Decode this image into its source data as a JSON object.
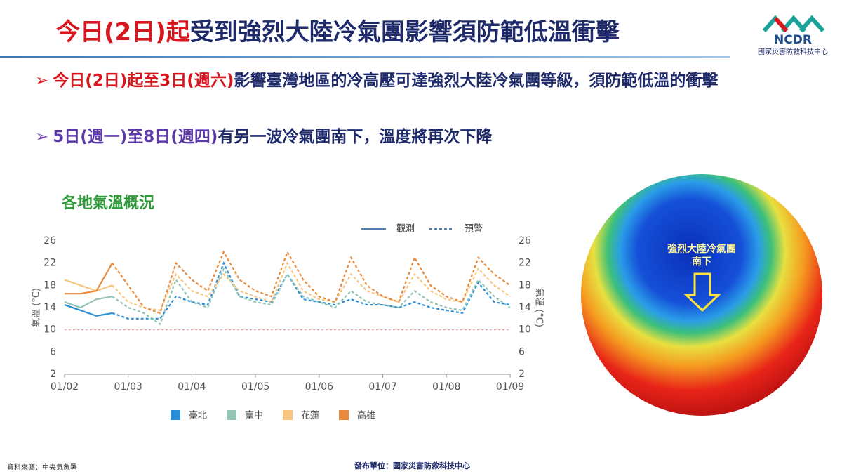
{
  "header": {
    "title_highlight": "今日(2日)起",
    "title_rest": "受到強烈大陸冷氣團影響須防範低溫衝擊",
    "logo": "NCDR",
    "organization": "國家災害防救科技中心"
  },
  "bullets": [
    {
      "highlight": "今日(2日)起至3日(週六)",
      "text": "影響臺灣地區的冷高壓可達強烈大陸冷氣團等級，須防範低溫的衝擊"
    },
    {
      "highlight": "5日(週一)至8日(週四)",
      "text": "有另一波冷氣團南下，溫度將再次下降"
    }
  ],
  "chart_data": {
    "type": "line",
    "title": "各地氣溫概況",
    "ylabel": "氣溫 (°C)",
    "y2label": "氣溫 (°C)",
    "x": [
      0,
      0.25,
      0.5,
      0.75,
      1,
      1.25,
      1.5,
      1.75,
      2,
      2.25,
      2.5,
      2.75,
      3,
      3.25,
      3.5,
      3.75,
      4,
      4.25,
      4.5,
      4.75,
      5,
      5.25,
      5.5,
      5.75,
      6,
      6.25,
      6.5,
      6.75,
      7
    ],
    "xlim": [
      0,
      7
    ],
    "xticks": [
      {
        "value": 0,
        "label": "01/02"
      },
      {
        "value": 1,
        "label": "01/03"
      },
      {
        "value": 2,
        "label": "01/04"
      },
      {
        "value": 3,
        "label": "01/05"
      },
      {
        "value": 4,
        "label": "01/06"
      },
      {
        "value": 5,
        "label": "01/07"
      },
      {
        "value": 6,
        "label": "01/08"
      },
      {
        "value": 7,
        "label": "01/09"
      }
    ],
    "ylim": [
      2,
      26
    ],
    "yticks": [
      2,
      6,
      10,
      14,
      18,
      22,
      26
    ],
    "y2lim": [
      2,
      26
    ],
    "y2ticks": [
      2,
      6,
      10,
      14,
      18,
      22,
      26
    ],
    "reference_line": {
      "value": 10,
      "color": "#f08a8a"
    },
    "line_styles": [
      {
        "name": "觀測",
        "dash": false
      },
      {
        "name": "預警",
        "dash": true
      }
    ],
    "series": [
      {
        "name": "臺北",
        "color": "#2a8fd8",
        "observed": [
          14.5,
          13.5,
          12.5,
          13,
          null,
          null,
          null,
          null,
          null,
          null,
          null,
          null,
          null,
          null,
          null,
          null,
          null,
          null,
          null,
          null,
          null,
          null,
          null,
          null,
          null,
          null,
          null,
          null,
          null
        ],
        "forecast": [
          null,
          null,
          null,
          13,
          12,
          12,
          12,
          16,
          15,
          14.5,
          22,
          16,
          15.5,
          15,
          20,
          15.5,
          15,
          14.5,
          15.5,
          14.5,
          14.5,
          14,
          15,
          14,
          13.5,
          13,
          18.5,
          15,
          14.5
        ]
      },
      {
        "name": "臺中",
        "color": "#93c4b6",
        "observed": [
          15,
          14,
          15.5,
          16,
          null,
          null,
          null,
          null,
          null,
          null,
          null,
          null,
          null,
          null,
          null,
          null,
          null,
          null,
          null,
          null,
          null,
          null,
          null,
          null,
          null,
          null,
          null,
          null,
          null
        ],
        "forecast": [
          null,
          null,
          null,
          16,
          14,
          13,
          11,
          19,
          15,
          14,
          21,
          16,
          15,
          14.5,
          20,
          16,
          15,
          14,
          17,
          15,
          14.5,
          14,
          17,
          15,
          14,
          13.5,
          19,
          16,
          14
        ]
      },
      {
        "name": "花蓮",
        "color": "#f8c57f",
        "observed": [
          19,
          18,
          17,
          18,
          null,
          null,
          null,
          null,
          null,
          null,
          null,
          null,
          null,
          null,
          null,
          null,
          null,
          null,
          null,
          null,
          null,
          null,
          null,
          null,
          null,
          null,
          null,
          null,
          null
        ],
        "forecast": [
          null,
          null,
          null,
          18,
          15,
          14,
          13.5,
          20,
          17,
          16,
          20,
          17,
          16,
          15,
          22,
          17,
          15.5,
          15,
          20,
          17,
          16,
          15,
          20,
          17,
          15.5,
          15,
          21,
          18,
          16
        ]
      },
      {
        "name": "高雄",
        "color": "#ea8a3c",
        "observed": [
          16.5,
          16.5,
          17,
          22,
          null,
          null,
          null,
          null,
          null,
          null,
          null,
          null,
          null,
          null,
          null,
          null,
          null,
          null,
          null,
          null,
          null,
          null,
          null,
          null,
          null,
          null,
          null,
          null,
          null
        ],
        "forecast": [
          null,
          null,
          null,
          22,
          18,
          14,
          13,
          22,
          19,
          17,
          24,
          19,
          17,
          16,
          24,
          19,
          16,
          15,
          23,
          18,
          16,
          15,
          23,
          18,
          16,
          15,
          23,
          20,
          18
        ]
      }
    ]
  },
  "map_annotation": [
    "強烈大陸冷氣團",
    "南下"
  ],
  "footer": {
    "source": "資料來源：中央氣象署",
    "publisher": "發布單位：國家災害防救科技中心"
  }
}
